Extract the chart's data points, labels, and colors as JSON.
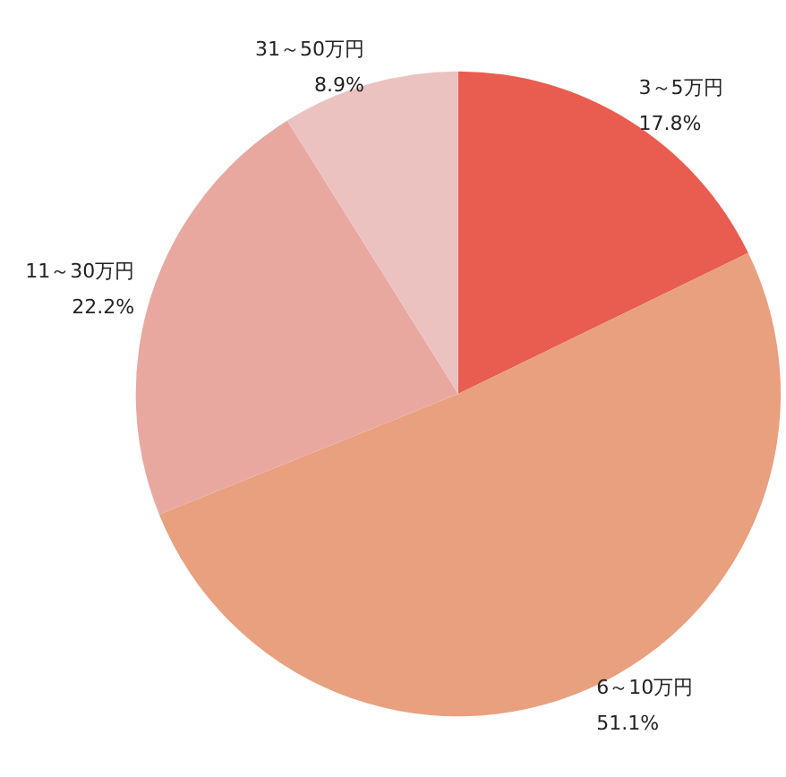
{
  "chart_data": {
    "type": "pie",
    "categories": [
      "3～5万円",
      "6～10万円",
      "11～30万円",
      "31～50万円"
    ],
    "values": [
      17.8,
      51.1,
      22.2,
      8.9
    ],
    "colors": [
      "#e85d4f",
      "#e8a07e",
      "#e8a8a0",
      "#ecc2c0"
    ],
    "value_labels": [
      "17.8%",
      "51.1%",
      "22.2%",
      "8.9%"
    ],
    "legend": false
  }
}
